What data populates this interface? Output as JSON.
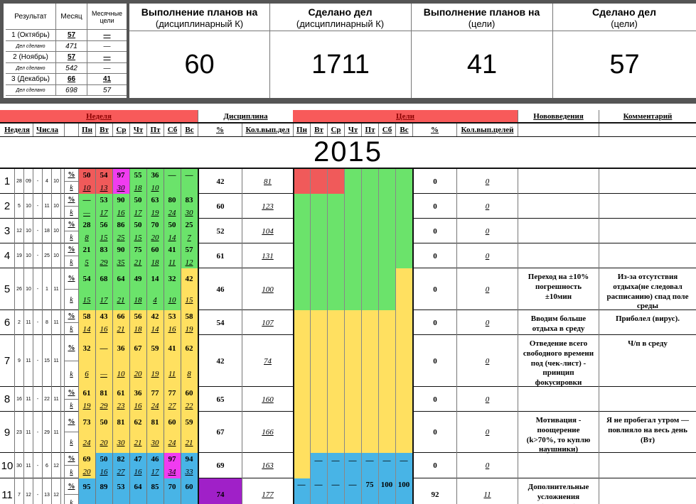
{
  "summary": {
    "headers": {
      "result": "Результат",
      "month": "Месяц",
      "goals": "Месячные цели"
    },
    "rows": [
      {
        "result": "1 (Октябрь)",
        "month": "57",
        "goals": "—",
        "sub_label": "Дел сделано",
        "sub_month": "471",
        "sub_goals": "—"
      },
      {
        "result": "2 (Ноябрь)",
        "month": "57",
        "goals": "—",
        "sub_label": "Дел сделано",
        "sub_month": "542",
        "sub_goals": "—"
      },
      {
        "result": "3 (Декабрь)",
        "month": "66",
        "goals": "41",
        "sub_label": "Дел сделано",
        "sub_month": "698",
        "sub_goals": "57"
      }
    ],
    "kpis": [
      {
        "title": "Выполнение планов на",
        "subtitle": "(дисциплинарный К)",
        "value": "60"
      },
      {
        "title": "Сделано дел",
        "subtitle": "(дисциплинарный К)",
        "value": "1711"
      },
      {
        "title": "Выполнение планов на",
        "subtitle": "(цели)",
        "value": "41"
      },
      {
        "title": "Сделано дел",
        "subtitle": "(цели)",
        "value": "57"
      }
    ]
  },
  "headers": {
    "week_group": "Неделя",
    "discipline": "Дисциплина",
    "goals": "Цели",
    "innovations": "Нововведения",
    "comments": "Комментарий",
    "week": "Неделя",
    "dates": "Числа",
    "days": [
      "Пн",
      "Вт",
      "Ср",
      "Чт",
      "Пт",
      "Сб",
      "Вс"
    ],
    "pct": "%",
    "disc_count": "Кол.вып.дел",
    "goals_count": "Кол.вып.целей"
  },
  "year": "2015",
  "row_labels": {
    "pct": "%",
    "k": "k"
  },
  "weeks": [
    {
      "week": "1",
      "dates": [
        "28",
        "09",
        "-",
        "4",
        "10"
      ],
      "pct": [
        "50",
        "54",
        "97",
        "55",
        "36",
        "—",
        "—"
      ],
      "k": [
        "10",
        "13",
        "30",
        "18",
        "10",
        "",
        ""
      ],
      "cols": [
        "red",
        "red",
        "magenta",
        "green",
        "green",
        "green",
        "green"
      ],
      "gcols": [
        "red",
        "red",
        "red",
        "green",
        "green",
        "green",
        "green"
      ],
      "gd": [
        "",
        "",
        "",
        "",
        "",
        "",
        ""
      ],
      "disc_pct": "42",
      "disc_count": "81",
      "goal_pct": "0",
      "goal_count": "0",
      "innovation": "",
      "comment": ""
    },
    {
      "week": "2",
      "dates": [
        "5",
        "10",
        "-",
        "11",
        "10"
      ],
      "pct": [
        "—",
        "53",
        "90",
        "50",
        "63",
        "80",
        "83"
      ],
      "k": [
        "—",
        "17",
        "16",
        "17",
        "19",
        "24",
        "30"
      ],
      "cols": [
        "green",
        "green",
        "green",
        "green",
        "green",
        "green",
        "green"
      ],
      "gcols": [
        "green",
        "green",
        "green",
        "green",
        "green",
        "green",
        "green"
      ],
      "gd": [
        "",
        "",
        "",
        "",
        "",
        "",
        ""
      ],
      "disc_pct": "60",
      "disc_count": "123",
      "goal_pct": "0",
      "goal_count": "0",
      "innovation": "",
      "comment": ""
    },
    {
      "week": "3",
      "dates": [
        "12",
        "10",
        "-",
        "18",
        "10"
      ],
      "pct": [
        "28",
        "56",
        "86",
        "50",
        "70",
        "50",
        "25"
      ],
      "k": [
        "8",
        "15",
        "25",
        "15",
        "20",
        "14",
        "7"
      ],
      "cols": [
        "green",
        "green",
        "green",
        "green",
        "green",
        "green",
        "green"
      ],
      "gcols": [
        "green",
        "green",
        "green",
        "green",
        "green",
        "green",
        "green"
      ],
      "gd": [
        "",
        "",
        "",
        "",
        "",
        "",
        ""
      ],
      "disc_pct": "52",
      "disc_count": "104",
      "goal_pct": "0",
      "goal_count": "0",
      "innovation": "",
      "comment": ""
    },
    {
      "week": "4",
      "dates": [
        "19",
        "10",
        "-",
        "25",
        "10"
      ],
      "pct": [
        "21",
        "83",
        "90",
        "75",
        "60",
        "41",
        "57"
      ],
      "k": [
        "5",
        "29",
        "35",
        "21",
        "18",
        "11",
        "12"
      ],
      "cols": [
        "green",
        "green",
        "green",
        "green",
        "green",
        "green",
        "green"
      ],
      "gcols": [
        "green",
        "green",
        "green",
        "green",
        "green",
        "green",
        "green"
      ],
      "gd": [
        "",
        "",
        "",
        "",
        "",
        "",
        ""
      ],
      "disc_pct": "61",
      "disc_count": "131",
      "goal_pct": "0",
      "goal_count": "0",
      "innovation": "",
      "comment": ""
    },
    {
      "week": "5",
      "dates": [
        "26",
        "10",
        "-",
        "1",
        "11"
      ],
      "pct": [
        "54",
        "68",
        "64",
        "49",
        "14",
        "32",
        "42"
      ],
      "k": [
        "15",
        "17",
        "21",
        "18",
        "4",
        "10",
        "15"
      ],
      "cols": [
        "green",
        "green",
        "green",
        "green",
        "green",
        "green",
        "yellow"
      ],
      "gcols": [
        "green",
        "green",
        "green",
        "green",
        "green",
        "green",
        "yellow"
      ],
      "gd": [
        "",
        "",
        "",
        "",
        "",
        "",
        ""
      ],
      "disc_pct": "46",
      "disc_count": "100",
      "goal_pct": "0",
      "goal_count": "0",
      "innovation": "Переход на ±10% погрешность ±10мин",
      "comment": "Из-за отсутствия отдыха(не следовал расписанию) спад поле среды"
    },
    {
      "week": "6",
      "dates": [
        "2",
        "11",
        "-",
        "8",
        "11"
      ],
      "pct": [
        "58",
        "43",
        "66",
        "56",
        "42",
        "53",
        "58"
      ],
      "k": [
        "14",
        "16",
        "21",
        "18",
        "14",
        "16",
        "19"
      ],
      "cols": [
        "yellow",
        "yellow",
        "yellow",
        "yellow",
        "yellow",
        "yellow",
        "yellow"
      ],
      "gcols": [
        "yellow",
        "yellow",
        "yellow",
        "yellow",
        "yellow",
        "yellow",
        "yellow"
      ],
      "gd": [
        "",
        "",
        "",
        "",
        "",
        "",
        ""
      ],
      "disc_pct": "54",
      "disc_count": "107",
      "goal_pct": "0",
      "goal_count": "0",
      "innovation": "Вводим больше отдыха в среду",
      "comment": "Приболел (вирус)."
    },
    {
      "week": "7",
      "dates": [
        "9",
        "11",
        "-",
        "15",
        "11"
      ],
      "pct": [
        "32",
        "—",
        "36",
        "67",
        "59",
        "41",
        "62"
      ],
      "k": [
        "6",
        "—",
        "10",
        "20",
        "19",
        "11",
        "8"
      ],
      "cols": [
        "yellow",
        "yellow",
        "yellow",
        "yellow",
        "yellow",
        "yellow",
        "yellow"
      ],
      "gcols": [
        "yellow",
        "yellow",
        "yellow",
        "yellow",
        "yellow",
        "yellow",
        "yellow"
      ],
      "gd": [
        "",
        "",
        "",
        "",
        "",
        "",
        ""
      ],
      "disc_pct": "42",
      "disc_count": "74",
      "goal_pct": "0",
      "goal_count": "0",
      "innovation": "Отведение всего свободного времени под (чек-лист) - принцип фокусировки",
      "comment": "Ч/п в среду"
    },
    {
      "week": "8",
      "dates": [
        "16",
        "11",
        "-",
        "22",
        "11"
      ],
      "pct": [
        "61",
        "81",
        "61",
        "36",
        "77",
        "77",
        "60"
      ],
      "k": [
        "19",
        "29",
        "23",
        "16",
        "24",
        "27",
        "22"
      ],
      "cols": [
        "yellow",
        "yellow",
        "yellow",
        "yellow",
        "yellow",
        "yellow",
        "yellow"
      ],
      "gcols": [
        "yellow",
        "yellow",
        "yellow",
        "yellow",
        "yellow",
        "yellow",
        "yellow"
      ],
      "gd": [
        "",
        "",
        "",
        "",
        "",
        "",
        ""
      ],
      "disc_pct": "65",
      "disc_count": "160",
      "goal_pct": "0",
      "goal_count": "0",
      "innovation": "",
      "comment": ""
    },
    {
      "week": "9",
      "dates": [
        "23",
        "11",
        "-",
        "29",
        "11"
      ],
      "pct": [
        "73",
        "50",
        "81",
        "62",
        "81",
        "60",
        "59"
      ],
      "k": [
        "24",
        "20",
        "30",
        "21",
        "30",
        "24",
        "21"
      ],
      "cols": [
        "yellow",
        "yellow",
        "yellow",
        "yellow",
        "yellow",
        "yellow",
        "yellow"
      ],
      "gcols": [
        "yellow",
        "yellow",
        "yellow",
        "yellow",
        "yellow",
        "yellow",
        "yellow"
      ],
      "gd": [
        "",
        "",
        "",
        "",
        "",
        "",
        ""
      ],
      "disc_pct": "67",
      "disc_count": "166",
      "goal_pct": "0",
      "goal_count": "0",
      "innovation": "Мотивация - поощерение (k>70%, то куплю наушники)",
      "comment": "Я не пробегал утром — повлияло на весь день (Вт)"
    },
    {
      "week": "10",
      "dates": [
        "30",
        "11",
        "-",
        "6",
        "12"
      ],
      "pct": [
        "69",
        "50",
        "82",
        "47",
        "46",
        "97",
        "94"
      ],
      "k": [
        "20",
        "16",
        "27",
        "16",
        "17",
        "34",
        "33"
      ],
      "cols": [
        "yellow",
        "blue",
        "blue",
        "blue",
        "blue",
        "magenta",
        "blue"
      ],
      "gcols": [
        "yellow",
        "blue",
        "blue",
        "blue",
        "blue",
        "blue",
        "blue"
      ],
      "gd": [
        "",
        "—",
        "—",
        "—",
        "—",
        "—",
        "—"
      ],
      "disc_pct": "69",
      "disc_count": "163",
      "goal_pct": "0",
      "goal_count": "0",
      "innovation": "",
      "comment": ""
    },
    {
      "week": "11",
      "dates": [
        "7",
        "12",
        "-",
        "13",
        "12"
      ],
      "pct": [
        "95",
        "89",
        "53",
        "64",
        "85",
        "70",
        "60"
      ],
      "k": [
        "",
        "",
        "",
        "",
        "",
        "",
        ""
      ],
      "cols": [
        "blue",
        "blue",
        "blue",
        "blue",
        "blue",
        "blue",
        "blue"
      ],
      "gcols": [
        "blue",
        "blue",
        "blue",
        "blue",
        "blue",
        "blue",
        "blue"
      ],
      "gd": [
        "—",
        "—",
        "—",
        "—",
        "75",
        "100",
        "100"
      ],
      "disc_pct": "74",
      "disc_count": "177",
      "goal_pct": "92",
      "goal_count": "11",
      "innovation": "Дополнительные усложнения (вопросы)",
      "comment": ""
    }
  ],
  "colors": {
    "red": "#f05a5a",
    "green": "#6be36b",
    "yellow": "#ffe060",
    "blue": "#48b4e6",
    "magenta": "#f03cf0",
    "purple": "#a020c8",
    "header_red": "#f85a5a",
    "frame": "#555555"
  }
}
